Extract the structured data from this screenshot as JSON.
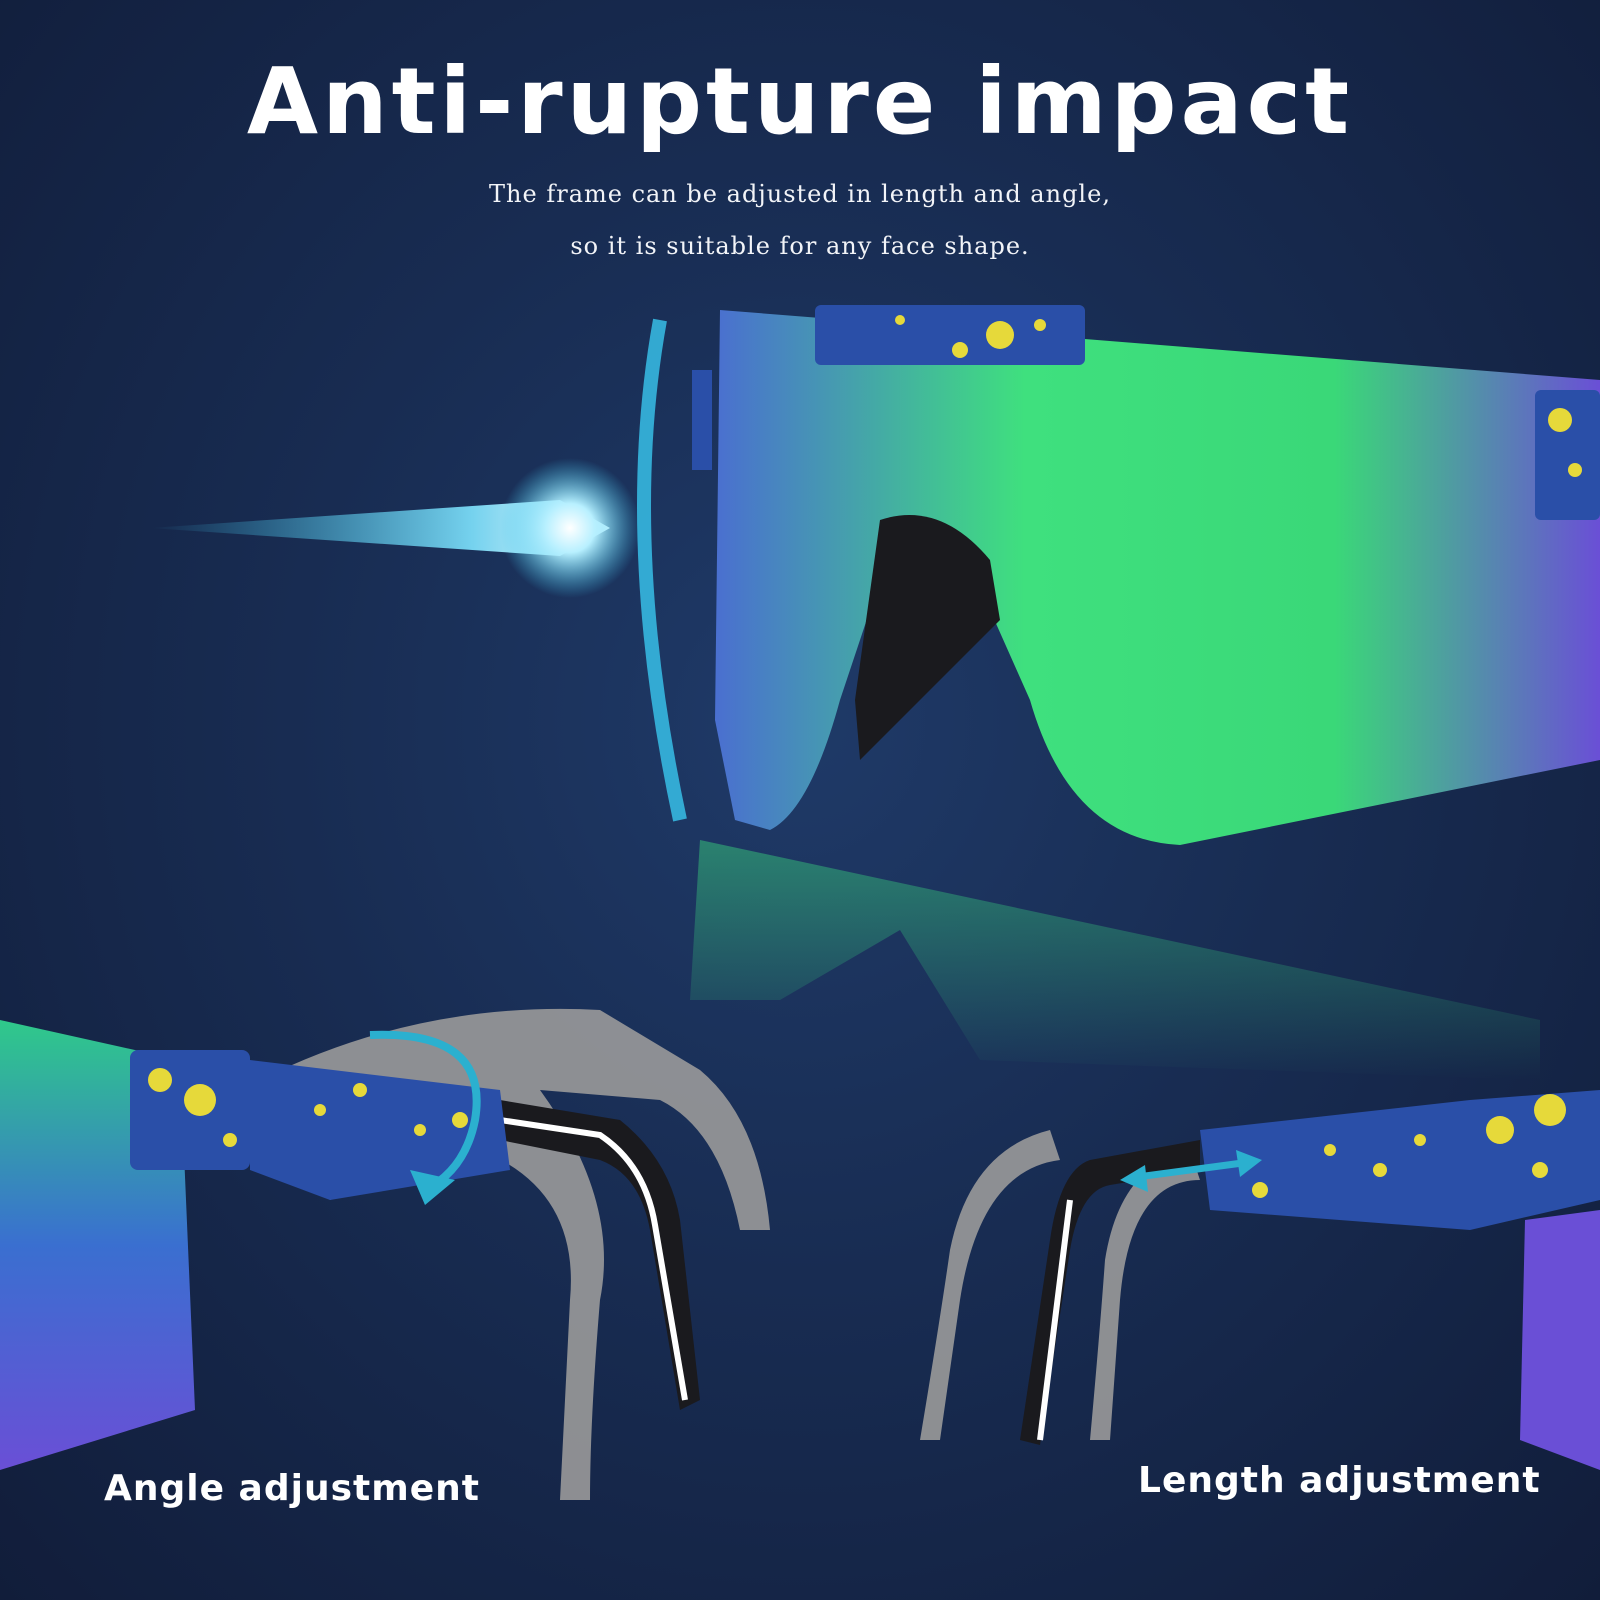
{
  "headline": "Anti-rupture impact",
  "description": {
    "line1": "The frame can be adjusted in length and angle,",
    "line2": "so it is suitable for any face shape."
  },
  "features": {
    "angle": "Angle adjustment",
    "length": "Length adjustment"
  },
  "colors": {
    "background": "#182c52",
    "lens_green": "#33e07a",
    "lens_purple": "#6a4fd6",
    "frame_blue": "#2a4fa8",
    "speckle_yellow": "#e6d93a",
    "impact_glow": "#39c8f0",
    "arrow_teal": "#2bb0cf"
  }
}
